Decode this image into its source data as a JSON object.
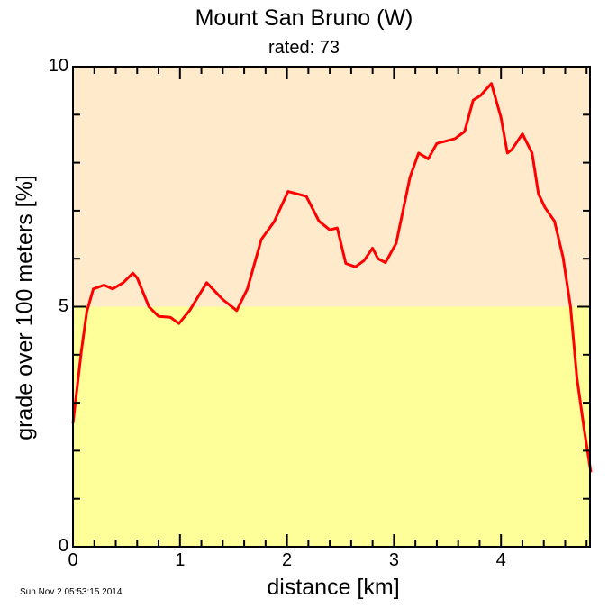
{
  "chart_data": {
    "type": "line",
    "title": "Mount San Bruno (W)",
    "subtitle": "rated: 73",
    "xlabel": "distance [km]",
    "ylabel": "grade over 100 meters [%]",
    "xlim": [
      0,
      4.84
    ],
    "ylim": [
      0,
      10
    ],
    "x_ticks": [
      "0",
      "1",
      "2",
      "3",
      "4"
    ],
    "y_ticks": [
      "0",
      "5",
      "10"
    ],
    "grid": false,
    "background_bands": [
      {
        "from": 0,
        "to": 5,
        "color": "#ffff99"
      },
      {
        "from": 5,
        "to": 10,
        "color": "#ffebcc"
      }
    ],
    "series": [
      {
        "name": "grade",
        "color": "#ff0000",
        "x": [
          0,
          0.08,
          0.13,
          0.19,
          0.29,
          0.37,
          0.47,
          0.56,
          0.6,
          0.71,
          0.8,
          0.91,
          0.99,
          1.09,
          1.25,
          1.4,
          1.53,
          1.63,
          1.76,
          1.88,
          2.01,
          2.18,
          2.3,
          2.4,
          2.47,
          2.55,
          2.64,
          2.72,
          2.8,
          2.85,
          2.92,
          3.02,
          3.15,
          3.23,
          3.32,
          3.4,
          3.57,
          3.66,
          3.74,
          3.81,
          3.91,
          4.0,
          4.06,
          4.1,
          4.2,
          4.29,
          4.35,
          4.41,
          4.5,
          4.58,
          4.65,
          4.71,
          4.78,
          4.84
        ],
        "values": [
          2.57,
          4.1,
          4.9,
          5.37,
          5.45,
          5.37,
          5.5,
          5.7,
          5.6,
          5.0,
          4.8,
          4.78,
          4.65,
          4.92,
          5.5,
          5.15,
          4.92,
          5.37,
          6.4,
          6.77,
          7.4,
          7.3,
          6.78,
          6.6,
          6.64,
          5.9,
          5.83,
          5.96,
          6.22,
          6.0,
          5.92,
          6.32,
          7.7,
          8.2,
          8.08,
          8.4,
          8.5,
          8.65,
          9.3,
          9.4,
          9.65,
          8.94,
          8.2,
          8.27,
          8.6,
          8.2,
          7.35,
          7.07,
          6.78,
          6.03,
          5.0,
          3.52,
          2.4,
          1.55
        ]
      }
    ]
  },
  "footer": {
    "timestamp": "Sun Nov  2 05:53:15 2014"
  }
}
